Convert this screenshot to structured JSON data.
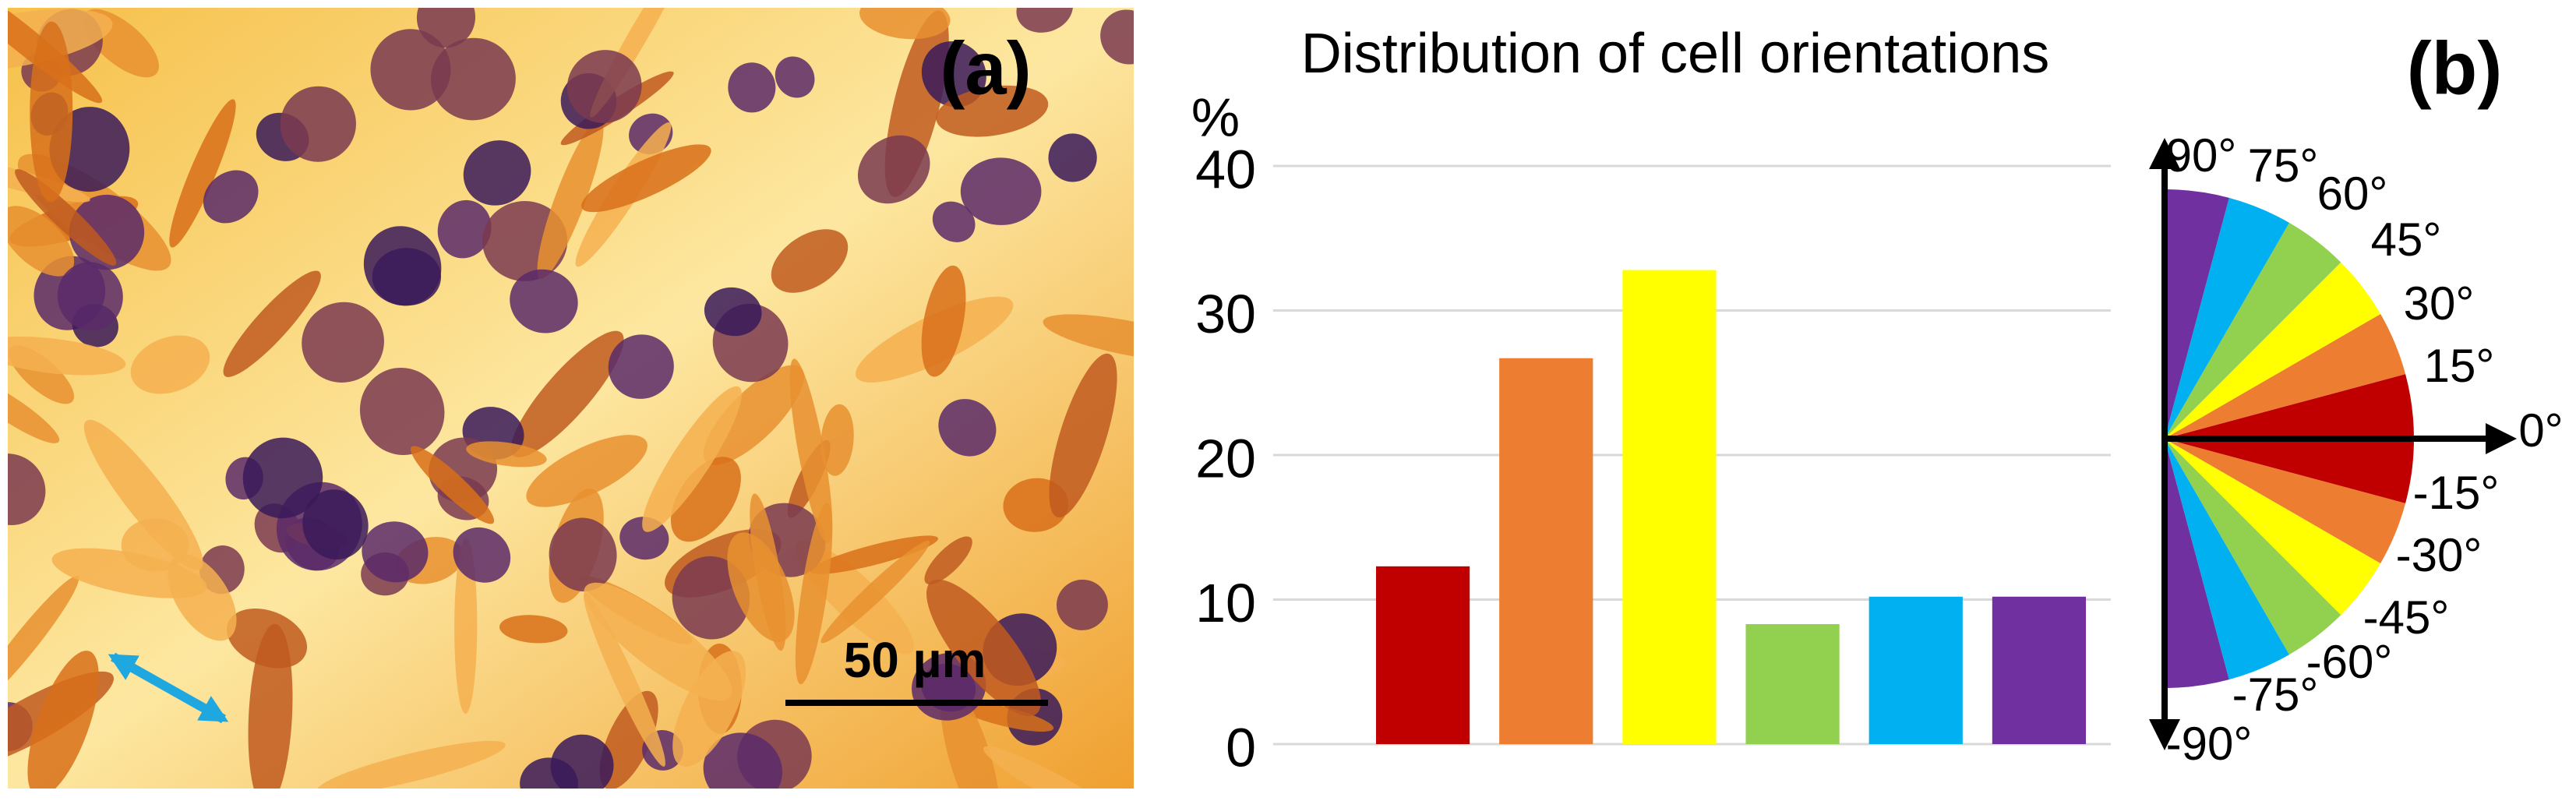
{
  "panel_a": {
    "label": "(a)",
    "scale_bar": "50 µm"
  },
  "panel_b": {
    "label": "(b)",
    "orientation_labels": [
      "90°",
      "75°",
      "60°",
      "45°",
      "30°",
      "15°",
      "0°",
      "-15°",
      "-30°",
      "-45°",
      "-60°",
      "-75°",
      "-90°"
    ]
  },
  "chart_data": {
    "type": "bar",
    "title": "Distribution of cell orientations",
    "y_label": "%",
    "categories": [
      null,
      null,
      null,
      null,
      null,
      null
    ],
    "values": [
      12.3,
      26.7,
      32.8,
      8.3,
      10.2,
      10.2
    ],
    "colors": [
      "#c00000",
      "#ed7d31",
      "#ffff00",
      "#92d050",
      "#00b0f0",
      "#7030a0"
    ],
    "ylim": [
      0,
      40
    ],
    "yticks": [
      0,
      10,
      20,
      30,
      40
    ],
    "grid": true
  }
}
